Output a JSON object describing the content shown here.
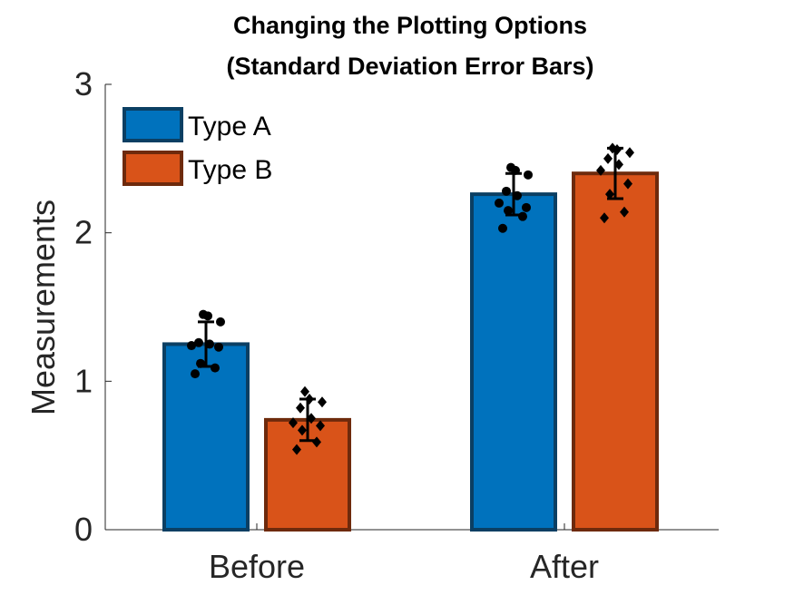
{
  "chart_data": {
    "type": "bar",
    "title": "Changing the Plotting Options",
    "subtitle": "(Standard Deviation Error Bars)",
    "xlabel": "",
    "ylabel": "Measurements",
    "categories": [
      "Before",
      "After"
    ],
    "ylim": [
      0,
      3
    ],
    "yticks": [
      "0",
      "1",
      "2",
      "3"
    ],
    "legend_position": "top-left",
    "grid": false,
    "series": [
      {
        "name": "Type A",
        "color": "#0072BD",
        "edge_color": "#0B3F63",
        "marker": "circle",
        "values": [
          1.25,
          2.26
        ],
        "sd": [
          0.15,
          0.14
        ],
        "points": [
          [
            1.05,
            1.09,
            1.12,
            1.23,
            1.24,
            1.25,
            1.26,
            1.4,
            1.44,
            1.45
          ],
          [
            2.03,
            2.11,
            2.15,
            2.17,
            2.2,
            2.25,
            2.28,
            2.39,
            2.42,
            2.44
          ]
        ]
      },
      {
        "name": "Type B",
        "color": "#D95319",
        "edge_color": "#6E2A0C",
        "marker": "diamond",
        "values": [
          0.74,
          2.4
        ],
        "sd": [
          0.14,
          0.17
        ],
        "points": [
          [
            0.54,
            0.59,
            0.67,
            0.7,
            0.72,
            0.75,
            0.82,
            0.86,
            0.88,
            0.93
          ],
          [
            2.1,
            2.14,
            2.26,
            2.33,
            2.42,
            2.46,
            2.5,
            2.54,
            2.56,
            2.57
          ]
        ]
      }
    ]
  }
}
